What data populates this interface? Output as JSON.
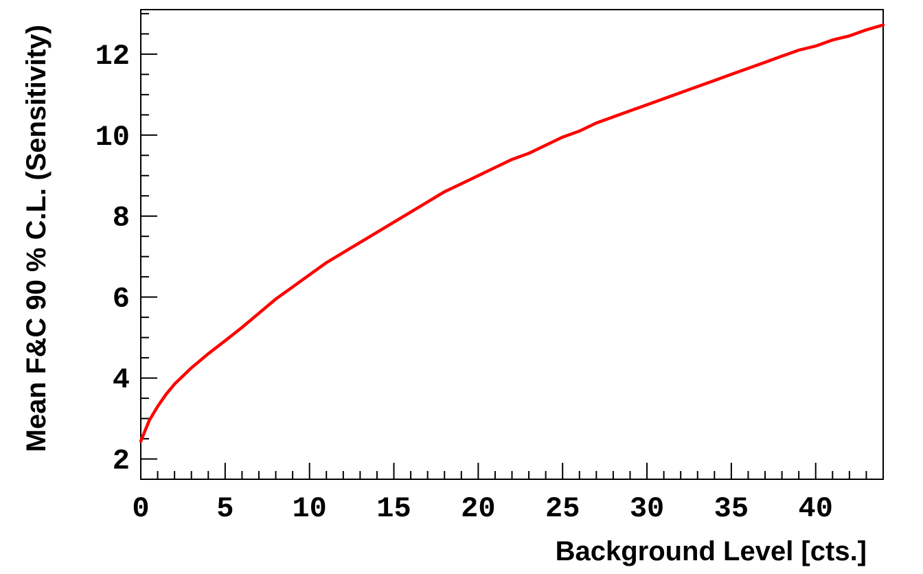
{
  "chart_data": {
    "type": "line",
    "xlabel": "Background Level [cts.]",
    "ylabel": "Mean F&C 90 % C.L. (Sensitivity)",
    "xlim": [
      0,
      44
    ],
    "ylim": [
      1.5,
      13.1
    ],
    "x_ticks": [
      "0",
      "5",
      "10",
      "15",
      "20",
      "25",
      "30",
      "35",
      "40"
    ],
    "y_ticks": [
      "2",
      "4",
      "6",
      "8",
      "10",
      "12"
    ],
    "grid": false,
    "line_color": "#ff0000",
    "series": [
      {
        "x": [
          0,
          0.5,
          1,
          1.5,
          2,
          3,
          4,
          5,
          6,
          7,
          8,
          9,
          10,
          11,
          12,
          13,
          14,
          15,
          16,
          17,
          18,
          19,
          20,
          21,
          22,
          23,
          24,
          25,
          26,
          27,
          28,
          29,
          30,
          31,
          32,
          33,
          34,
          35,
          36,
          37,
          38,
          39,
          40,
          41,
          42,
          43,
          44
        ],
        "y": [
          2.44,
          2.95,
          3.3,
          3.6,
          3.85,
          4.25,
          4.6,
          4.92,
          5.25,
          5.6,
          5.95,
          6.25,
          6.55,
          6.85,
          7.1,
          7.35,
          7.6,
          7.85,
          8.1,
          8.35,
          8.6,
          8.8,
          9.0,
          9.2,
          9.4,
          9.55,
          9.75,
          9.95,
          10.1,
          10.3,
          10.45,
          10.6,
          10.75,
          10.9,
          11.05,
          11.2,
          11.35,
          11.5,
          11.65,
          11.8,
          11.95,
          12.1,
          12.2,
          12.35,
          12.45,
          12.6,
          12.72
        ]
      }
    ]
  }
}
